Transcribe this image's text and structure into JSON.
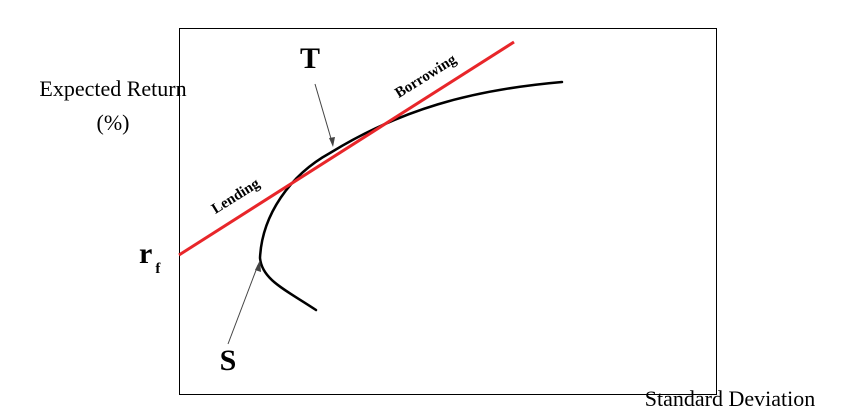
{
  "labels": {
    "y_axis_line1": "Expected Return",
    "y_axis_line2": "(%)",
    "x_axis": "Standard Deviation",
    "tangent_point": "T",
    "min_variance_point": "S",
    "risk_free_main": "r",
    "risk_free_sub": "f",
    "lending": "Lending",
    "borrowing": "Borrowing"
  },
  "colors": {
    "capital_market_line": "#e8262a",
    "frontier_curve": "#000000",
    "frame": "#000000",
    "pointer_arrow": "#444444"
  }
}
